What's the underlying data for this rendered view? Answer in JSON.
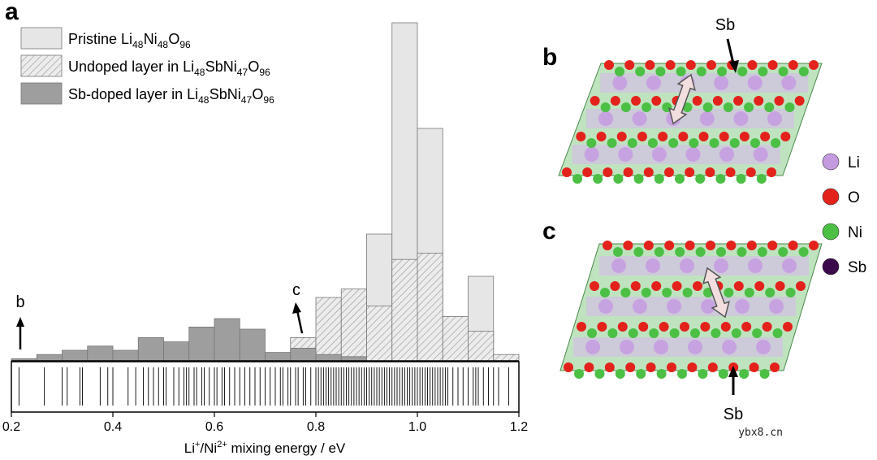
{
  "panel_labels": {
    "a": "a",
    "b": "b",
    "c": "c"
  },
  "legend": [
    {
      "name": "Pristine",
      "sub": [
        [
          "Li",
          "48"
        ],
        [
          "Ni",
          "48"
        ],
        [
          "O",
          "96"
        ]
      ],
      "style": "light"
    },
    {
      "name": "Undoped layer in",
      "sub": [
        [
          "Li",
          "48"
        ],
        [
          "SbNi",
          "47"
        ],
        [
          "O",
          "96"
        ]
      ],
      "style": "hatched"
    },
    {
      "name": "Sb-doped layer in",
      "sub": [
        [
          "Li",
          "48"
        ],
        [
          "SbNi",
          "47"
        ],
        [
          "O",
          "96"
        ]
      ],
      "style": "dark"
    }
  ],
  "annotations": {
    "b": "b",
    "c": "c"
  },
  "structure": {
    "sb_label_top": "Sb",
    "sb_label_bottom": "Sb",
    "atom_legend": [
      {
        "label": "Li",
        "color": "#c59be0"
      },
      {
        "label": "O",
        "color": "#e3221c"
      },
      {
        "label": "Ni",
        "color": "#4cbf45"
      },
      {
        "label": "Sb",
        "color": "#3a0a4a"
      }
    ]
  },
  "colors": {
    "pristine": "#e6e6e6",
    "undoped": "#d6d6d6",
    "doped": "#9e9e9e",
    "edge": "#777777"
  },
  "watermark": "ybx8.cn",
  "chart_data": {
    "type": "bar",
    "subtype": "histogram",
    "title": "",
    "xlabel_parts": [
      "Li",
      "+",
      "/Ni",
      "2+",
      " mixing energy / eV"
    ],
    "ylabel": "",
    "xlim": [
      0.2,
      1.2
    ],
    "xticks": [
      "0.2",
      "0.4",
      "0.6",
      "0.8",
      "1.0",
      "1.2"
    ],
    "bin_edges": [
      0.2,
      0.25,
      0.3,
      0.35,
      0.4,
      0.45,
      0.5,
      0.55,
      0.6,
      0.65,
      0.7,
      0.75,
      0.8,
      0.85,
      0.9,
      0.95,
      1.0,
      1.05,
      1.1,
      1.15,
      1.2
    ],
    "series": [
      {
        "name": "Pristine Li48Ni48O96",
        "values": [
          0,
          0,
          0,
          0,
          0,
          0,
          0,
          0,
          0,
          0,
          0,
          0,
          0,
          0,
          6,
          16,
          11,
          0,
          4,
          0
        ]
      },
      {
        "name": "Undoped layer in Li48SbNi47O96",
        "values": [
          0,
          0,
          0,
          0,
          0,
          0,
          0,
          0,
          0,
          0,
          0,
          1.1,
          3.0,
          3.4,
          2.6,
          4.8,
          5.1,
          2.1,
          1.4,
          0.3
        ]
      },
      {
        "name": "Sb-doped layer in Li48SbNi47O96",
        "values": [
          0.1,
          0.3,
          0.5,
          0.7,
          0.5,
          1.1,
          0.9,
          1.6,
          2.0,
          1.5,
          0.4,
          0.6,
          0.3,
          0.2,
          0,
          0,
          0,
          0,
          0,
          0
        ]
      }
    ],
    "rug_positions": [
      0.215,
      0.265,
      0.3,
      0.31,
      0.335,
      0.34,
      0.375,
      0.39,
      0.4,
      0.43,
      0.445,
      0.46,
      0.47,
      0.48,
      0.49,
      0.5,
      0.505,
      0.52,
      0.53,
      0.54,
      0.545,
      0.55,
      0.56,
      0.565,
      0.575,
      0.58,
      0.59,
      0.6,
      0.605,
      0.615,
      0.62,
      0.63,
      0.64,
      0.65,
      0.66,
      0.67,
      0.68,
      0.69,
      0.7,
      0.71,
      0.72,
      0.73,
      0.735,
      0.745,
      0.75,
      0.76,
      0.765,
      0.775,
      0.78,
      0.79,
      0.8,
      0.805,
      0.81,
      0.815,
      0.82,
      0.825,
      0.83,
      0.835,
      0.84,
      0.845,
      0.85,
      0.855,
      0.86,
      0.865,
      0.87,
      0.875,
      0.88,
      0.885,
      0.89,
      0.895,
      0.9,
      0.905,
      0.91,
      0.915,
      0.92,
      0.925,
      0.93,
      0.935,
      0.94,
      0.945,
      0.95,
      0.955,
      0.96,
      0.965,
      0.97,
      0.975,
      0.98,
      0.985,
      0.99,
      0.995,
      1.0,
      1.005,
      1.01,
      1.015,
      1.02,
      1.025,
      1.03,
      1.035,
      1.04,
      1.045,
      1.05,
      1.055,
      1.06,
      1.07,
      1.08,
      1.09,
      1.1,
      1.11,
      1.115,
      1.12,
      1.13,
      1.14,
      1.15,
      1.16,
      1.18
    ]
  }
}
